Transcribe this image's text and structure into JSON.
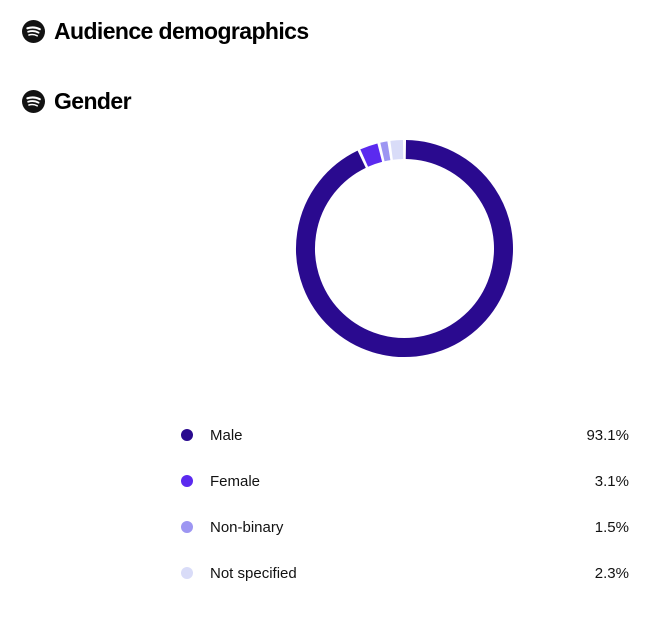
{
  "headings": {
    "audience": "Audience demographics",
    "gender": "Gender"
  },
  "icons": {
    "heading_icon": "spotify-icon"
  },
  "colors": {
    "male": "#2a0a8f",
    "female": "#5b2aef",
    "non_binary": "#9d96f2",
    "not_specified": "#d9dcf8"
  },
  "chart_data": {
    "type": "pie",
    "variant": "donut",
    "title": "Gender",
    "categories": [
      "Male",
      "Female",
      "Non-binary",
      "Not specified"
    ],
    "values": [
      93.1,
      3.1,
      1.5,
      2.3
    ],
    "value_labels": [
      "93.1%",
      "3.1%",
      "1.5%",
      "2.3%"
    ],
    "colors": [
      "#2a0a8f",
      "#5b2aef",
      "#9d96f2",
      "#d9dcf8"
    ],
    "legend_position": "bottom"
  }
}
